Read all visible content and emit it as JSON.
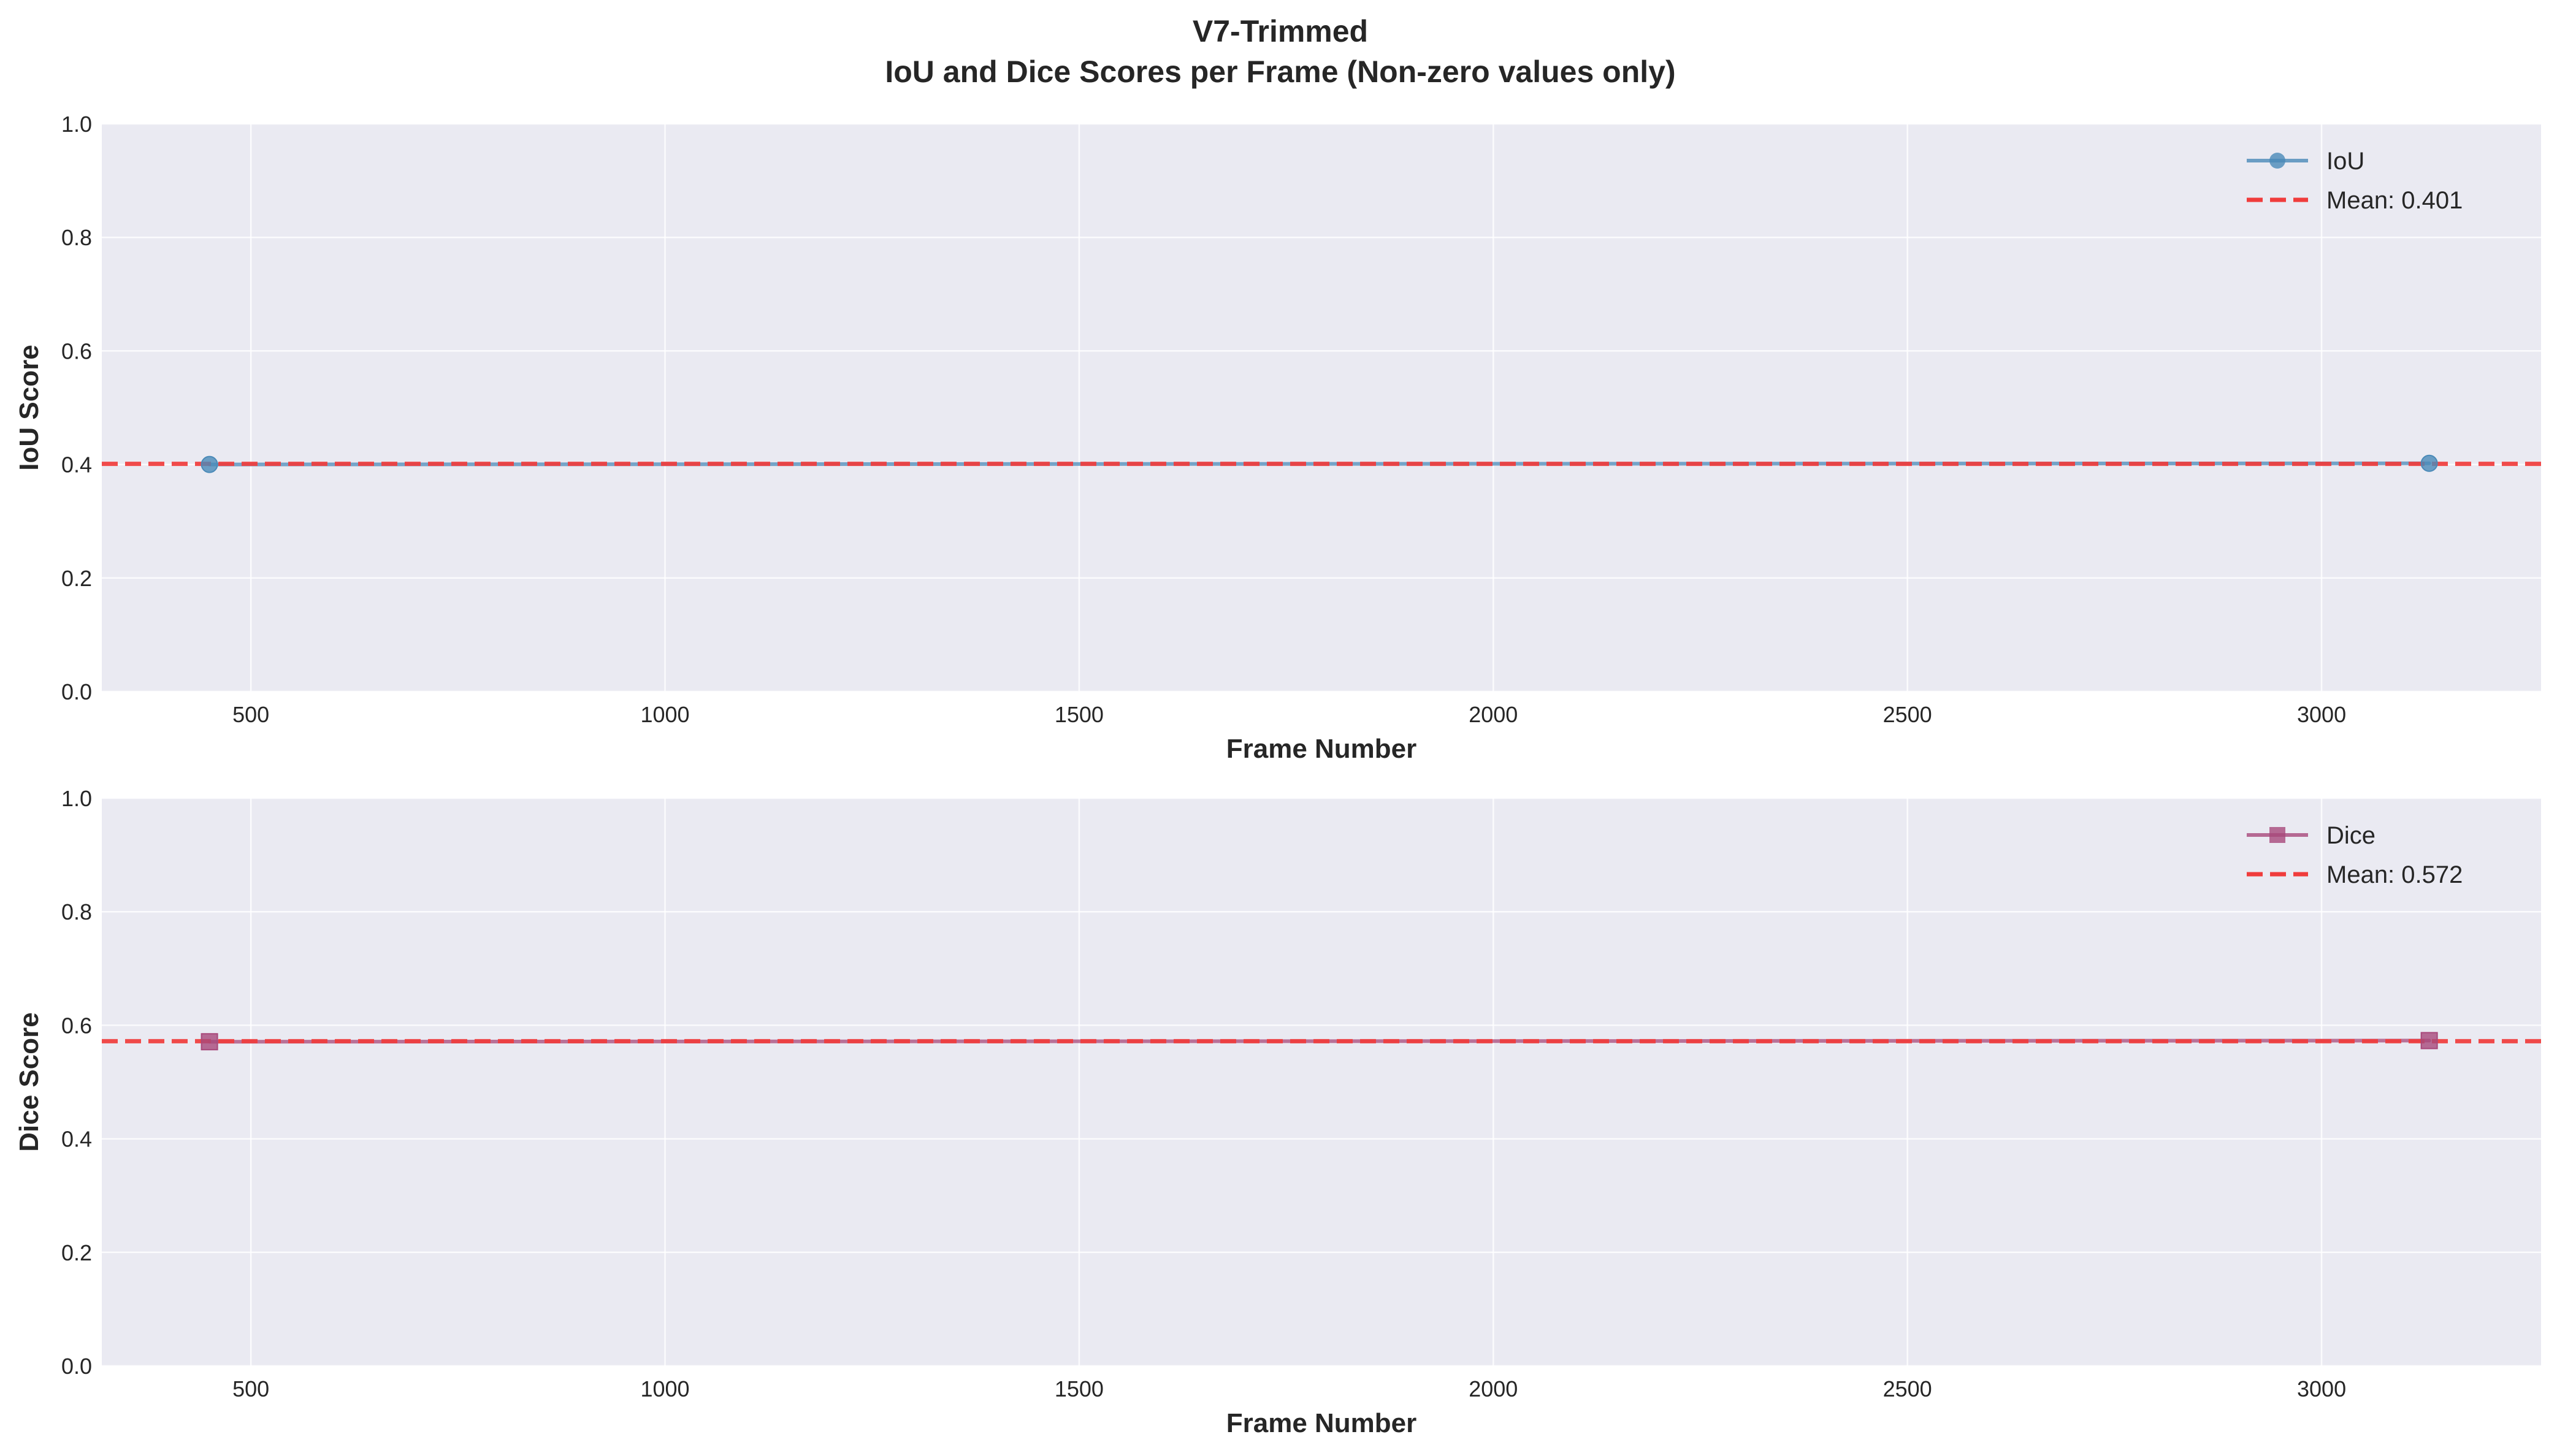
{
  "figure": {
    "title_line1": "V7-Trimmed",
    "title_line2": "IoU and Dice Scores per Frame (Non-zero values only)"
  },
  "chart_data": [
    {
      "type": "line",
      "xlabel": "Frame Number",
      "ylabel": "IoU Score",
      "xlim": [
        320,
        3265
      ],
      "ylim": [
        0,
        1
      ],
      "xticks": [
        500,
        1000,
        1500,
        2000,
        2500,
        3000
      ],
      "yticks": [
        0.0,
        0.2,
        0.4,
        0.6,
        0.8,
        1.0
      ],
      "xtick_labels": [
        "500",
        "1000",
        "1500",
        "2000",
        "2500",
        "3000"
      ],
      "ytick_labels": [
        "0.0",
        "0.2",
        "0.4",
        "0.6",
        "0.8",
        "1.0"
      ],
      "grid": true,
      "legend_position": "top-right",
      "series": [
        {
          "name": "IoU",
          "marker": "circle",
          "color": "#4a8ab8",
          "x": [
            450,
            3130
          ],
          "y": [
            0.4,
            0.402
          ]
        }
      ],
      "mean_line": {
        "label": "Mean: 0.401",
        "value": 0.401,
        "color": "#f03c3c",
        "style": "dashed"
      }
    },
    {
      "type": "line",
      "xlabel": "Frame Number",
      "ylabel": "Dice Score",
      "xlim": [
        320,
        3265
      ],
      "ylim": [
        0,
        1
      ],
      "xticks": [
        500,
        1000,
        1500,
        2000,
        2500,
        3000
      ],
      "yticks": [
        0.0,
        0.2,
        0.4,
        0.6,
        0.8,
        1.0
      ],
      "xtick_labels": [
        "500",
        "1000",
        "1500",
        "2000",
        "2500",
        "3000"
      ],
      "ytick_labels": [
        "0.0",
        "0.2",
        "0.4",
        "0.6",
        "0.8",
        "1.0"
      ],
      "grid": true,
      "legend_position": "top-right",
      "series": [
        {
          "name": "Dice",
          "marker": "square",
          "color": "#a8487a",
          "x": [
            450,
            3130
          ],
          "y": [
            0.571,
            0.573
          ]
        }
      ],
      "mean_line": {
        "label": "Mean: 0.572",
        "value": 0.572,
        "color": "#f03c3c",
        "style": "dashed"
      }
    }
  ]
}
